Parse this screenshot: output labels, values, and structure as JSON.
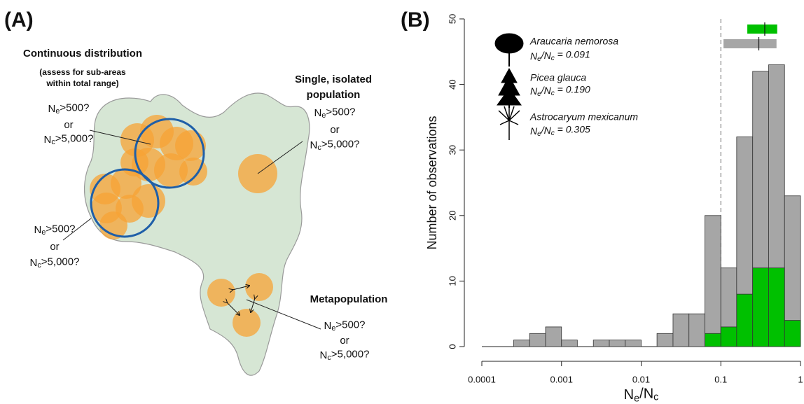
{
  "panel_a": {
    "label": "(A)",
    "continuous": {
      "title": "Continuous distribution",
      "note": [
        "(assess for sub-areas",
        "within total range)"
      ]
    },
    "isolated": {
      "title": [
        "Single, isolated",
        "population"
      ]
    },
    "metapopulation": {
      "title": "Metapopulation"
    },
    "questions": [
      [
        "Ne>500?",
        "or",
        "Nc>5,000?"
      ],
      [
        "Ne>500?",
        "or",
        "Nc>5,000?"
      ],
      [
        "Ne>500?",
        "or",
        "Nc>5,000?"
      ],
      [
        "Ne>500?",
        "or",
        "Nc>5,000?"
      ]
    ]
  },
  "chart_data": {
    "type": "histogram",
    "panel_label": "(B)",
    "xlabel": "Ne/Nc",
    "ylabel": "Number of observations",
    "xscale": "log",
    "overlay": true,
    "bins": [
      0.0001,
      0.000158,
      0.000251,
      0.000398,
      0.000631,
      0.001,
      0.00158,
      0.00251,
      0.00398,
      0.00631,
      0.01,
      0.0158,
      0.0251,
      0.0398,
      0.0631,
      0.1,
      0.158,
      0.251,
      0.398,
      0.631,
      1
    ],
    "series": [
      {
        "color": "#a6a6a6",
        "values": [
          0,
          0,
          1,
          2,
          3,
          1,
          0,
          1,
          1,
          1,
          0,
          2,
          5,
          5,
          20,
          12,
          32,
          42,
          43,
          23
        ]
      },
      {
        "color": "#00c000",
        "values": [
          0,
          0,
          0,
          0,
          0,
          0,
          0,
          0,
          0,
          0,
          0,
          0,
          0,
          0,
          2,
          3,
          8,
          12,
          12,
          4
        ]
      }
    ],
    "xlim": [
      0.0001,
      1
    ],
    "ylim": [
      0,
      50
    ],
    "xticks": [
      0.0001,
      0.001,
      0.01,
      0.1,
      1
    ],
    "yticks": [
      0,
      10,
      20,
      30,
      40,
      50
    ],
    "reference_line": {
      "x": 0.1,
      "style": "dashed"
    },
    "ranges": [
      {
        "color": "#00c000",
        "low": 0.215,
        "median": 0.356,
        "high": 0.51
      },
      {
        "color": "#a6a6a6",
        "low": 0.108,
        "median": 0.3,
        "high": 0.5
      }
    ],
    "species": [
      {
        "name": "Araucaria nemorosa",
        "ratio": "Ne/Nc = 0.091"
      },
      {
        "name": "Picea glauca",
        "ratio": "Ne/Nc = 0.190"
      },
      {
        "name": "Astrocaryum mexicanum",
        "ratio": "Ne/Nc = 0.305"
      }
    ]
  }
}
